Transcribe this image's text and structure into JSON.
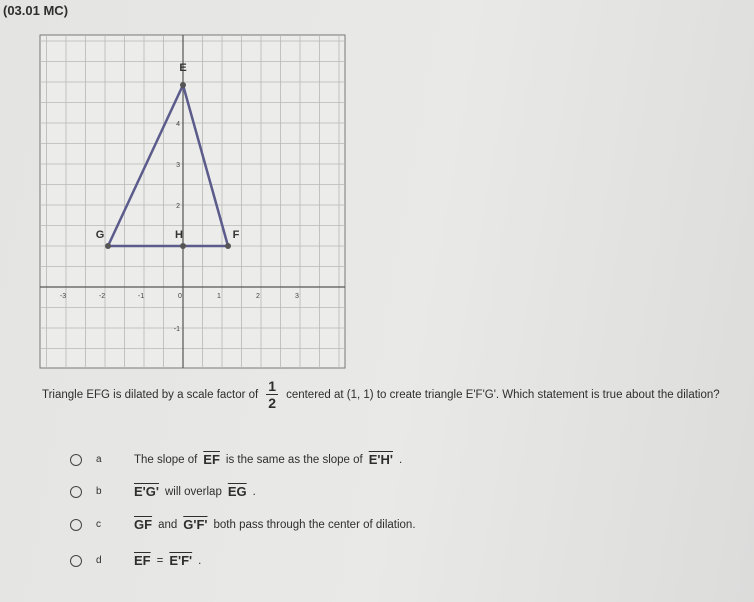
{
  "header": {
    "code": "(03.01 MC)"
  },
  "graph": {
    "point_labels": [
      "E",
      "G",
      "H",
      "F"
    ],
    "x_ticks": [
      -3,
      -2,
      -1,
      0,
      1,
      2,
      3
    ],
    "y_ticks": [
      4,
      3,
      2,
      -1
    ]
  },
  "question": {
    "before": "Triangle EFG is dilated by a scale factor of",
    "numerator": "1",
    "denominator": "2",
    "after": "centered at (1, 1) to create triangle E'F'G'. Which statement is true about the dilation?"
  },
  "options": [
    {
      "letter": "a",
      "parts": [
        {
          "text": "The slope of"
        },
        {
          "text": "EF",
          "overline": true
        },
        {
          "text": "is the same as the slope of"
        },
        {
          "text": "E'H'",
          "overline": true
        },
        {
          "text": "."
        }
      ]
    },
    {
      "letter": "b",
      "parts": [
        {
          "text": "E'G'",
          "overline": true
        },
        {
          "text": "will overlap"
        },
        {
          "text": "EG",
          "overline": true
        },
        {
          "text": "."
        }
      ]
    },
    {
      "letter": "c",
      "parts": [
        {
          "text": "GF",
          "overline": true
        },
        {
          "text": "and"
        },
        {
          "text": "G'F'",
          "overline": true
        },
        {
          "text": "both pass through the center of dilation."
        }
      ]
    },
    {
      "letter": "d",
      "parts": [
        {
          "text": "EF",
          "overline": true
        },
        {
          "text": "="
        },
        {
          "text": "E'F'",
          "overline": true
        },
        {
          "text": "."
        }
      ]
    }
  ]
}
